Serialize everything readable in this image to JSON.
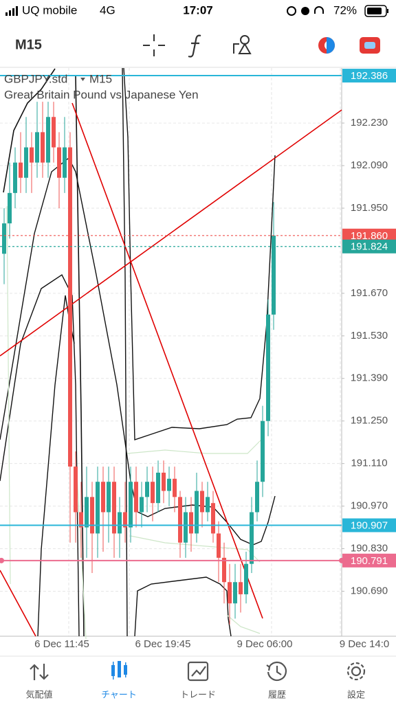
{
  "status_bar": {
    "carrier": "UQ mobile",
    "network": "4G",
    "time": "17:07",
    "battery": "72%"
  },
  "toolbar": {
    "timeframe": "M15"
  },
  "chart": {
    "symbol": "GBPJPY.std",
    "symbol_timeframe": "M15",
    "description": "Great Britain Pound vs Japanese Yen",
    "ylim": [
      190.542,
      192.411
    ],
    "price_ticks": [
      {
        "value": 192.23,
        "label": "192.230"
      },
      {
        "value": 192.09,
        "label": "192.090"
      },
      {
        "value": 191.95,
        "label": "191.950"
      },
      {
        "value": 191.67,
        "label": "191.670"
      },
      {
        "value": 191.53,
        "label": "191.530"
      },
      {
        "value": 191.39,
        "label": "191.390"
      },
      {
        "value": 191.25,
        "label": "191.250"
      },
      {
        "value": 191.11,
        "label": "191.110"
      },
      {
        "value": 190.97,
        "label": "190.970"
      },
      {
        "value": 190.83,
        "label": "190.830"
      },
      {
        "value": 190.69,
        "label": "190.690"
      }
    ],
    "price_markers": [
      {
        "price": 192.386,
        "color": "#29b6d8",
        "line": "solid"
      },
      {
        "price": {
          "value": 191.86,
          "label": "191.860"
        },
        "color": "#ef5350",
        "line": "dotted"
      },
      {
        "price": 191.824,
        "color": "#26a69a",
        "line": "dotted"
      },
      {
        "price": 190.907,
        "color": "#29b6d8",
        "line": "solid"
      },
      {
        "price": 190.791,
        "color": "#ec6b8e",
        "line": "solid"
      }
    ],
    "time_labels": [
      "6 Dec 11:45",
      "6 Dec 19:45",
      "9 Dec 06:00",
      "9 Dec 14:0"
    ],
    "up_color": "#26a69a",
    "down_color": "#ef5350",
    "candles": {
      "open": [
        191.8,
        191.9,
        192.0,
        192.1,
        192.05,
        192.15,
        192.1,
        192.2,
        192.1,
        192.25,
        192.15,
        192.05,
        192.15,
        191.1,
        190.95,
        190.9,
        191.0,
        190.88,
        191.05,
        190.95,
        191.05,
        190.88,
        190.95,
        190.9,
        191.05,
        190.95,
        191.0,
        191.05,
        190.98,
        191.08,
        191.02,
        191.06,
        191.0,
        190.85,
        190.95,
        190.88,
        191.02,
        190.95,
        190.98,
        190.88,
        190.8,
        190.72,
        190.65,
        190.72,
        190.68,
        190.78,
        190.95,
        191.05,
        191.25,
        191.6
      ],
      "high": [
        191.95,
        192.1,
        192.15,
        192.2,
        192.25,
        192.2,
        192.3,
        192.3,
        192.3,
        192.3,
        192.2,
        192.25,
        192.2,
        191.15,
        191.05,
        191.1,
        191.05,
        191.1,
        191.1,
        191.1,
        191.1,
        191.0,
        191.05,
        191.1,
        191.1,
        191.05,
        191.1,
        191.1,
        191.12,
        191.12,
        191.1,
        191.1,
        191.02,
        191.0,
        191.0,
        191.08,
        191.05,
        191.05,
        191.02,
        190.92,
        190.85,
        190.78,
        190.78,
        190.78,
        190.82,
        191.0,
        191.12,
        191.3,
        191.65,
        191.97
      ],
      "low": [
        191.7,
        191.85,
        191.95,
        192.0,
        192.0,
        192.0,
        192.05,
        192.05,
        192.05,
        192.1,
        191.95,
        192.0,
        190.85,
        190.85,
        190.8,
        190.8,
        190.75,
        190.8,
        190.82,
        190.85,
        190.8,
        190.8,
        190.85,
        190.85,
        190.9,
        190.9,
        190.95,
        190.92,
        190.95,
        190.98,
        190.97,
        190.95,
        190.8,
        190.8,
        190.82,
        190.85,
        190.9,
        190.92,
        190.85,
        190.72,
        190.65,
        190.58,
        190.6,
        190.62,
        190.65,
        190.75,
        190.92,
        191.0,
        191.2,
        191.55
      ],
      "close": [
        191.9,
        192.0,
        192.1,
        192.05,
        192.15,
        192.1,
        192.2,
        192.1,
        192.25,
        192.15,
        192.05,
        192.15,
        191.1,
        190.95,
        190.9,
        191.0,
        190.88,
        191.05,
        190.95,
        191.05,
        190.88,
        190.95,
        190.9,
        191.05,
        190.95,
        191.0,
        191.05,
        190.98,
        191.08,
        191.02,
        191.06,
        191.0,
        190.85,
        190.95,
        190.88,
        191.02,
        190.95,
        191.0,
        190.88,
        190.8,
        190.72,
        190.65,
        190.72,
        190.68,
        190.78,
        190.95,
        191.05,
        191.25,
        191.6,
        191.86
      ]
    }
  },
  "tabs": [
    {
      "label": "気配値",
      "active": false
    },
    {
      "label": "チャート",
      "active": true
    },
    {
      "label": "トレード",
      "active": false
    },
    {
      "label": "履歴",
      "active": false
    },
    {
      "label": "設定",
      "active": false
    }
  ]
}
